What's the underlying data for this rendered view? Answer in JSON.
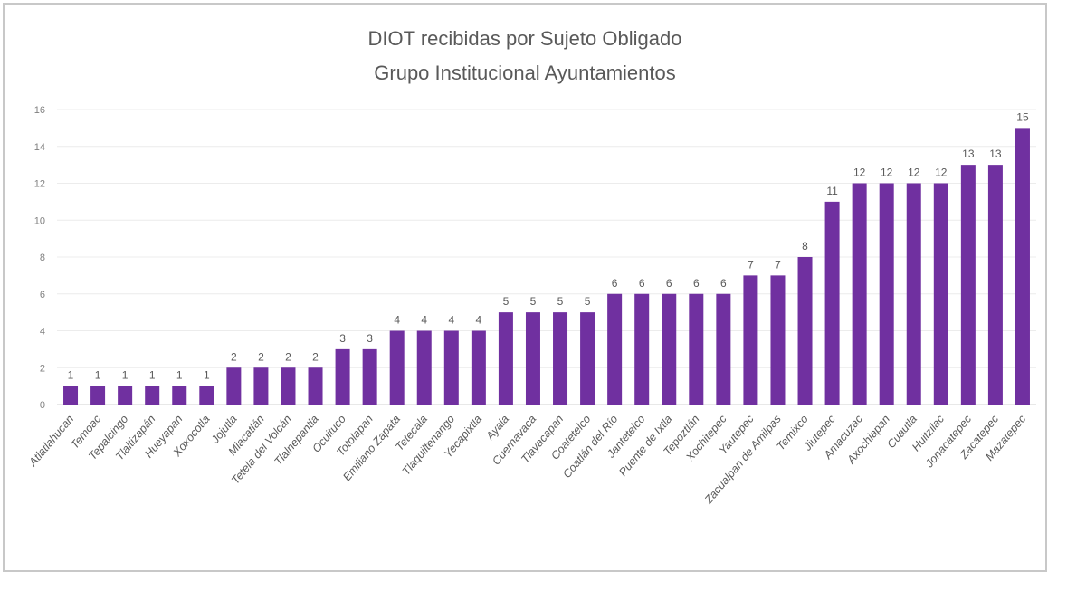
{
  "chart_data": {
    "type": "bar",
    "title": [
      "DIOT recibidas por Sujeto Obligado",
      "Grupo Institucional Ayuntamientos"
    ],
    "categories": [
      "Atlatlahucan",
      "Temoac",
      "Tepalcingo",
      "Tlaltizapán",
      "Hueyapan",
      "Xoxocotla",
      "Jojutla",
      "Miacatlán",
      "Tetela del Volcán",
      "Tlalnepantla",
      "Ocuituco",
      "Totolapan",
      "Emiliano Zapata",
      "Tetecala",
      "Tlaquiltenango",
      "Yecapixtla",
      "Ayala",
      "Cuernavaca",
      "Tlayacapan",
      "Coatetelco",
      "Coatlán del Río",
      "Jantetelco",
      "Puente de Ixtla",
      "Tepoztlán",
      "Xochitepec",
      "Yautepec",
      "Zacualpan de Amilpas",
      "Temixco",
      "Jiutepec",
      "Amacuzac",
      "Axochiapan",
      "Cuautla",
      "Huitzilac",
      "Jonacatepec",
      "Zacatepec",
      "Mazatepec"
    ],
    "values": [
      1,
      1,
      1,
      1,
      1,
      1,
      2,
      2,
      2,
      2,
      3,
      3,
      4,
      4,
      4,
      4,
      5,
      5,
      5,
      5,
      6,
      6,
      6,
      6,
      6,
      7,
      7,
      8,
      11,
      12,
      12,
      12,
      12,
      13,
      13,
      15
    ],
    "ylim": [
      0,
      16
    ],
    "yticks": [
      0,
      2,
      4,
      6,
      8,
      10,
      12,
      14,
      16
    ],
    "grid": true,
    "data_labels": true,
    "legend": "none",
    "bar_color": "#7030A0"
  }
}
